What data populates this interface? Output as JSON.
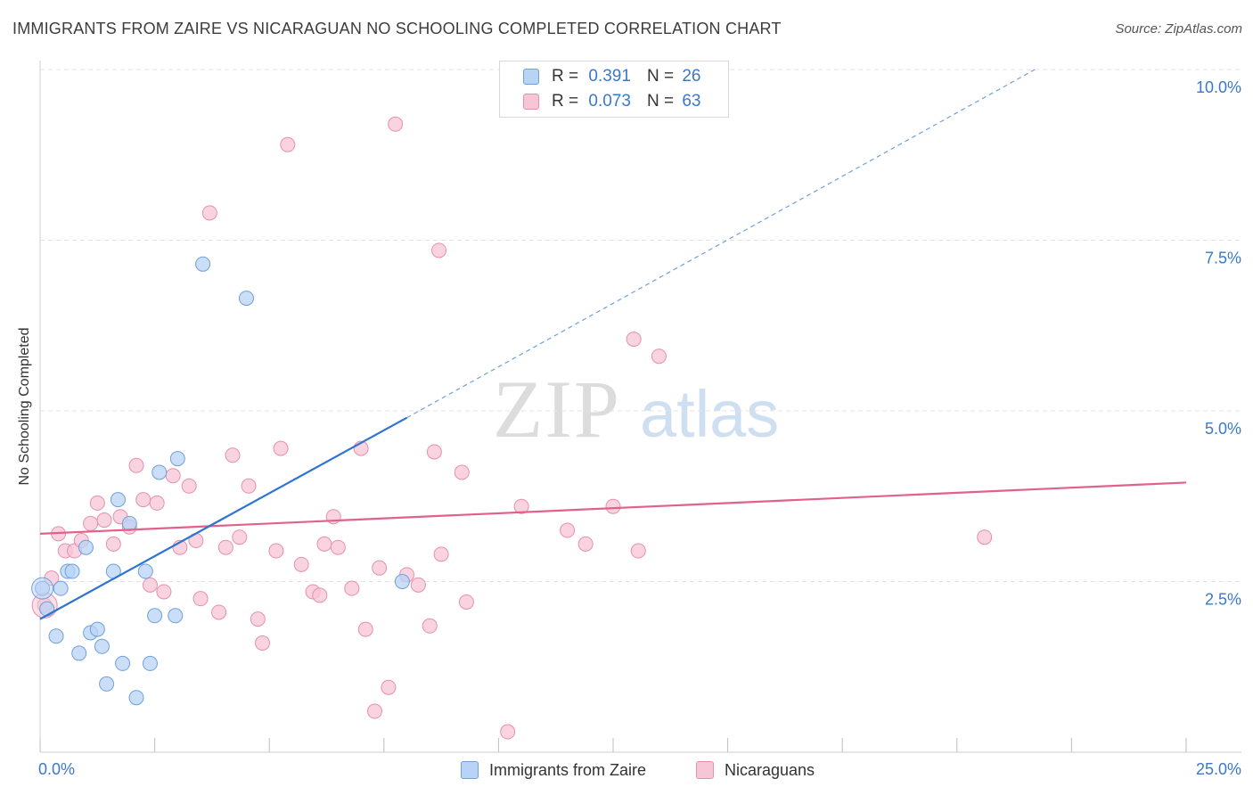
{
  "header": {
    "title": "IMMIGRANTS FROM ZAIRE VS NICARAGUAN NO SCHOOLING COMPLETED CORRELATION CHART",
    "source": "Source: ZipAtlas.com"
  },
  "watermark": {
    "zip": "ZIP",
    "atlas": "atlas"
  },
  "legend": {
    "rows": [
      {
        "r_label": "R =",
        "r_value": "0.391",
        "n_label": "N =",
        "n_value": "26"
      },
      {
        "r_label": "R =",
        "r_value": "0.073",
        "n_label": "N =",
        "n_value": "63"
      }
    ]
  },
  "bottom_legend": [
    "Immigrants from Zaire",
    "Nicaraguans"
  ],
  "colors": {
    "blue_fill": "#b8d3f5",
    "blue_stroke": "#6f9fdc",
    "blue_line": "#2f74d0",
    "pink_fill": "#f7c6d6",
    "pink_stroke": "#e78fab",
    "pink_line": "#e0618a",
    "tick_label": "#3a78c9"
  },
  "chart_data": {
    "type": "scatter",
    "title": "IMMIGRANTS FROM ZAIRE VS NICARAGUAN NO SCHOOLING COMPLETED CORRELATION CHART",
    "xlabel": "",
    "ylabel": "No Schooling Completed",
    "xlim": [
      0,
      25
    ],
    "ylim": [
      0,
      10
    ],
    "x_tick_labels": [
      "0.0%",
      "25.0%"
    ],
    "y_ticks": [
      2.5,
      5.0,
      7.5,
      10.0
    ],
    "y_tick_labels": [
      "2.5%",
      "5.0%",
      "7.5%",
      "10.0%"
    ],
    "grid": true,
    "legend_position": "top-center",
    "series": [
      {
        "name": "Immigrants from Zaire",
        "color": "#b8d3f5",
        "R": 0.391,
        "N": 26,
        "points": [
          [
            0.05,
            2.4
          ],
          [
            0.15,
            2.1
          ],
          [
            0.35,
            1.7
          ],
          [
            0.45,
            2.4
          ],
          [
            0.6,
            2.65
          ],
          [
            0.7,
            2.65
          ],
          [
            0.85,
            1.45
          ],
          [
            1.0,
            3.0
          ],
          [
            1.1,
            1.75
          ],
          [
            1.25,
            1.8
          ],
          [
            1.35,
            1.55
          ],
          [
            1.45,
            1.0
          ],
          [
            1.6,
            2.65
          ],
          [
            1.7,
            3.7
          ],
          [
            1.8,
            1.3
          ],
          [
            1.95,
            3.35
          ],
          [
            2.1,
            0.8
          ],
          [
            2.3,
            2.65
          ],
          [
            2.4,
            1.3
          ],
          [
            2.5,
            2.0
          ],
          [
            2.6,
            4.1
          ],
          [
            2.95,
            2.0
          ],
          [
            3.0,
            4.3
          ],
          [
            3.55,
            7.15
          ],
          [
            4.5,
            6.65
          ],
          [
            7.9,
            2.5
          ]
        ],
        "trend": {
          "x": [
            0,
            8.0
          ],
          "y": [
            1.95,
            4.9
          ]
        },
        "trend_extension": {
          "x": [
            8.0,
            21.7
          ],
          "y": [
            4.9,
            10.0
          ]
        }
      },
      {
        "name": "Nicaraguans",
        "color": "#f7c6d6",
        "R": 0.073,
        "N": 63,
        "points": [
          [
            0.1,
            2.15
          ],
          [
            0.25,
            2.55
          ],
          [
            0.4,
            3.2
          ],
          [
            0.55,
            2.95
          ],
          [
            0.75,
            2.95
          ],
          [
            0.9,
            3.1
          ],
          [
            1.1,
            3.35
          ],
          [
            1.25,
            3.65
          ],
          [
            1.4,
            3.4
          ],
          [
            1.6,
            3.05
          ],
          [
            1.75,
            3.45
          ],
          [
            1.95,
            3.3
          ],
          [
            2.1,
            4.2
          ],
          [
            2.25,
            3.7
          ],
          [
            2.4,
            2.45
          ],
          [
            2.55,
            3.65
          ],
          [
            2.7,
            2.35
          ],
          [
            2.9,
            4.05
          ],
          [
            3.05,
            3.0
          ],
          [
            3.25,
            3.9
          ],
          [
            3.4,
            3.1
          ],
          [
            3.5,
            2.25
          ],
          [
            3.7,
            7.9
          ],
          [
            3.9,
            2.05
          ],
          [
            4.05,
            3.0
          ],
          [
            4.2,
            4.35
          ],
          [
            4.35,
            3.15
          ],
          [
            4.55,
            3.9
          ],
          [
            4.75,
            1.95
          ],
          [
            4.85,
            1.6
          ],
          [
            5.15,
            2.95
          ],
          [
            5.25,
            4.45
          ],
          [
            5.4,
            8.9
          ],
          [
            5.7,
            2.75
          ],
          [
            5.95,
            2.35
          ],
          [
            6.1,
            2.3
          ],
          [
            6.2,
            3.05
          ],
          [
            6.4,
            3.45
          ],
          [
            6.5,
            3.0
          ],
          [
            6.8,
            2.4
          ],
          [
            7.0,
            4.45
          ],
          [
            7.1,
            1.8
          ],
          [
            7.3,
            0.6
          ],
          [
            7.4,
            2.7
          ],
          [
            7.6,
            0.95
          ],
          [
            7.75,
            9.2
          ],
          [
            8.0,
            2.6
          ],
          [
            8.25,
            2.45
          ],
          [
            8.5,
            1.85
          ],
          [
            8.6,
            4.4
          ],
          [
            8.7,
            7.35
          ],
          [
            8.75,
            2.9
          ],
          [
            9.2,
            4.1
          ],
          [
            9.3,
            2.2
          ],
          [
            10.2,
            0.3
          ],
          [
            10.5,
            3.6
          ],
          [
            11.5,
            3.25
          ],
          [
            11.9,
            3.05
          ],
          [
            12.5,
            3.6
          ],
          [
            13.05,
            2.95
          ],
          [
            12.95,
            6.05
          ],
          [
            13.5,
            5.8
          ],
          [
            20.6,
            3.15
          ]
        ],
        "trend": {
          "x": [
            0,
            25
          ],
          "y": [
            3.2,
            3.95
          ]
        }
      }
    ]
  }
}
